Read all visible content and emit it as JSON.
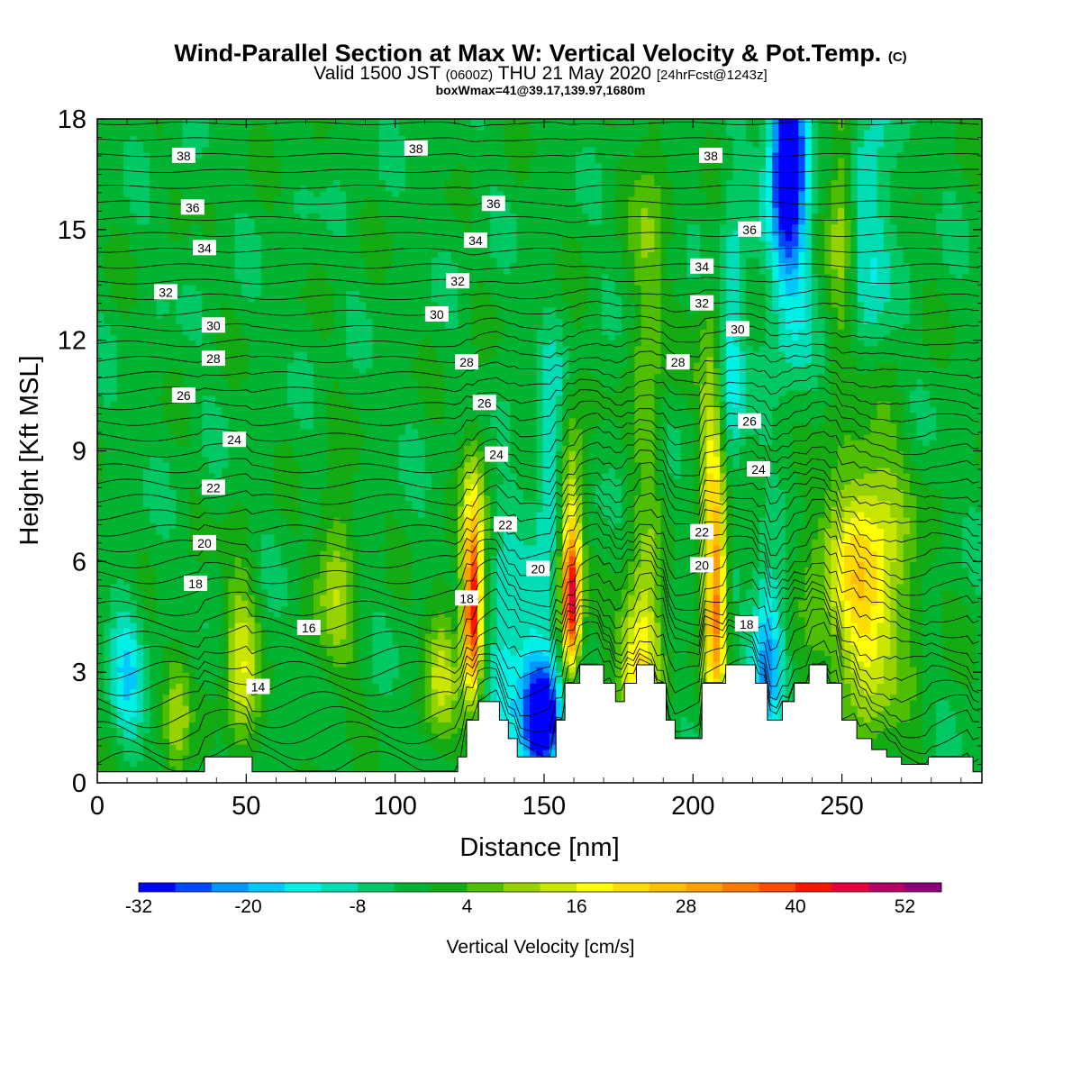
{
  "titles": {
    "main": "Wind-Parallel Section at Max W: Vertical Velocity & Pot.Temp.",
    "main_mark": "(C)",
    "valid_pre": "Valid 1500 JST",
    "valid_z": "(0600Z)",
    "valid_post": "THU 21 May 2020",
    "fcst": "[24hrFcst@1243z]",
    "box": "boxWmax=41@39.17,139.97,1680m"
  },
  "chart_data": {
    "type": "heatmap",
    "xlabel": "Distance [nm]",
    "ylabel": "Height [Kft MSL]",
    "xlim": [
      0,
      297
    ],
    "ylim": [
      0,
      18
    ],
    "xticks": [
      0,
      50,
      100,
      150,
      200,
      250
    ],
    "yticks": [
      0,
      3,
      6,
      9,
      12,
      15,
      18
    ],
    "colorbar": {
      "label": "Vertical Velocity [cm/s]",
      "ticks": [
        "-32",
        "-20",
        "-8",
        "4",
        "16",
        "28",
        "40",
        "52"
      ],
      "tick_values": [
        -32,
        -20,
        -8,
        4,
        16,
        28,
        40,
        52
      ],
      "range": [
        -32,
        56
      ],
      "step": 4,
      "colors": [
        "#0000ff",
        "#0046ff",
        "#0096ff",
        "#00c8ff",
        "#00f0e6",
        "#00dcb4",
        "#00c864",
        "#00b432",
        "#14aa14",
        "#50be00",
        "#96d200",
        "#c8e600",
        "#ffff00",
        "#ffdc00",
        "#ffbe00",
        "#ffa000",
        "#ff7800",
        "#ff4b00",
        "#ff1400",
        "#e6003c",
        "#b40064",
        "#8c0078"
      ]
    },
    "background_value": -2,
    "terrain": [
      [
        0,
        0.3
      ],
      [
        36,
        0.3
      ],
      [
        36,
        0.7
      ],
      [
        52,
        0.7
      ],
      [
        52,
        0.3
      ],
      [
        121,
        0.3
      ],
      [
        121,
        0.7
      ],
      [
        124,
        0.7
      ],
      [
        124,
        1.7
      ],
      [
        128,
        1.7
      ],
      [
        128,
        2.2
      ],
      [
        135,
        2.2
      ],
      [
        135,
        1.7
      ],
      [
        138,
        1.7
      ],
      [
        138,
        1.2
      ],
      [
        141,
        1.2
      ],
      [
        141,
        0.7
      ],
      [
        154,
        0.7
      ],
      [
        154,
        1.7
      ],
      [
        157,
        1.7
      ],
      [
        157,
        2.7
      ],
      [
        162,
        2.7
      ],
      [
        162,
        3.2
      ],
      [
        170,
        3.2
      ],
      [
        170,
        2.7
      ],
      [
        174,
        2.7
      ],
      [
        174,
        2.2
      ],
      [
        177,
        2.2
      ],
      [
        177,
        2.7
      ],
      [
        181,
        2.7
      ],
      [
        181,
        3.2
      ],
      [
        187,
        3.2
      ],
      [
        187,
        2.7
      ],
      [
        191,
        2.7
      ],
      [
        191,
        1.7
      ],
      [
        194,
        1.7
      ],
      [
        194,
        1.2
      ],
      [
        203,
        1.2
      ],
      [
        203,
        2.7
      ],
      [
        211,
        2.7
      ],
      [
        211,
        3.2
      ],
      [
        221,
        3.2
      ],
      [
        221,
        2.7
      ],
      [
        225,
        2.7
      ],
      [
        225,
        1.7
      ],
      [
        230,
        1.7
      ],
      [
        230,
        2.2
      ],
      [
        234,
        2.2
      ],
      [
        234,
        2.7
      ],
      [
        239,
        2.7
      ],
      [
        239,
        3.2
      ],
      [
        245,
        3.2
      ],
      [
        245,
        2.7
      ],
      [
        250,
        2.7
      ],
      [
        250,
        1.7
      ],
      [
        255,
        1.7
      ],
      [
        255,
        1.2
      ],
      [
        260,
        1.2
      ],
      [
        260,
        0.9
      ],
      [
        265,
        0.9
      ],
      [
        265,
        0.7
      ],
      [
        270,
        0.7
      ],
      [
        270,
        0.5
      ],
      [
        279,
        0.5
      ],
      [
        279,
        0.7
      ],
      [
        294,
        0.7
      ],
      [
        294,
        0.3
      ],
      [
        297,
        0.3
      ],
      [
        297,
        0
      ],
      [
        0,
        0
      ]
    ],
    "w_features": [
      {
        "x": 126,
        "y": 4.5,
        "sx": 2.2,
        "sy": 1.5,
        "a": 44
      },
      {
        "x": 126,
        "y": 7.2,
        "sx": 3,
        "sy": 1.8,
        "a": 16
      },
      {
        "x": 159,
        "y": 4.8,
        "sx": 2.2,
        "sy": 1.4,
        "a": 42
      },
      {
        "x": 159,
        "y": 7.5,
        "sx": 3,
        "sy": 2,
        "a": 15
      },
      {
        "x": 208,
        "y": 4.8,
        "sx": 2.5,
        "sy": 2.2,
        "a": 32
      },
      {
        "x": 206,
        "y": 9,
        "sx": 3,
        "sy": 3,
        "a": 16
      },
      {
        "x": 182,
        "y": 3.5,
        "sx": 5,
        "sy": 1.5,
        "a": 24
      },
      {
        "x": 256,
        "y": 5,
        "sx": 12,
        "sy": 2.5,
        "a": 18
      },
      {
        "x": 260,
        "y": 7.5,
        "sx": 6,
        "sy": 3,
        "a": 10
      },
      {
        "x": 232,
        "y": 17.5,
        "sx": 4,
        "sy": 2,
        "a": -30
      },
      {
        "x": 232,
        "y": 15,
        "sx": 5,
        "sy": 3,
        "a": -14
      },
      {
        "x": 260,
        "y": 15,
        "sx": 5,
        "sy": 4,
        "a": -10
      },
      {
        "x": 150,
        "y": 1.7,
        "sx": 4,
        "sy": 1,
        "a": -32
      },
      {
        "x": 145,
        "y": 2.6,
        "sx": 6,
        "sy": 1.8,
        "a": -14
      },
      {
        "x": 136,
        "y": 4,
        "sx": 3,
        "sy": 2.5,
        "a": -10
      },
      {
        "x": 152,
        "y": 8.5,
        "sx": 3,
        "sy": 2,
        "a": -14
      },
      {
        "x": 225,
        "y": 3.5,
        "sx": 4,
        "sy": 1.5,
        "a": -22
      },
      {
        "x": 213,
        "y": 12,
        "sx": 3,
        "sy": 3,
        "a": -12
      },
      {
        "x": 27,
        "y": 1.8,
        "sx": 3,
        "sy": 1.5,
        "a": 12
      },
      {
        "x": 48,
        "y": 3,
        "sx": 4,
        "sy": 2,
        "a": 16
      },
      {
        "x": 80,
        "y": 5.5,
        "sx": 5,
        "sy": 2,
        "a": 12
      },
      {
        "x": 115,
        "y": 3,
        "sx": 4,
        "sy": 1.5,
        "a": 14
      },
      {
        "x": 185,
        "y": 13,
        "sx": 4,
        "sy": 5,
        "a": 10
      },
      {
        "x": 250,
        "y": 16,
        "sx": 3,
        "sy": 3,
        "a": 12
      },
      {
        "x": 10,
        "y": 3,
        "sx": 4,
        "sy": 1.5,
        "a": -12
      }
    ],
    "contour_labels": [
      {
        "text": "38",
        "x": 29,
        "y": 17
      },
      {
        "text": "38",
        "x": 107,
        "y": 17.2
      },
      {
        "text": "38",
        "x": 206,
        "y": 17
      },
      {
        "text": "36",
        "x": 32,
        "y": 15.6
      },
      {
        "text": "36",
        "x": 133,
        "y": 15.7
      },
      {
        "text": "36",
        "x": 219,
        "y": 15
      },
      {
        "text": "34",
        "x": 36,
        "y": 14.5
      },
      {
        "text": "34",
        "x": 127,
        "y": 14.7
      },
      {
        "text": "34",
        "x": 203,
        "y": 14
      },
      {
        "text": "32",
        "x": 23,
        "y": 13.3
      },
      {
        "text": "32",
        "x": 121,
        "y": 13.6
      },
      {
        "text": "32",
        "x": 203,
        "y": 13
      },
      {
        "text": "30",
        "x": 39,
        "y": 12.4
      },
      {
        "text": "30",
        "x": 114,
        "y": 12.7
      },
      {
        "text": "30",
        "x": 215,
        "y": 12.3
      },
      {
        "text": "28",
        "x": 39,
        "y": 11.5
      },
      {
        "text": "28",
        "x": 124,
        "y": 11.4
      },
      {
        "text": "28",
        "x": 195,
        "y": 11.4
      },
      {
        "text": "26",
        "x": 29,
        "y": 10.5
      },
      {
        "text": "26",
        "x": 130,
        "y": 10.3
      },
      {
        "text": "26",
        "x": 219,
        "y": 9.8
      },
      {
        "text": "24",
        "x": 46,
        "y": 9.3
      },
      {
        "text": "24",
        "x": 134,
        "y": 8.9
      },
      {
        "text": "24",
        "x": 222,
        "y": 8.5
      },
      {
        "text": "22",
        "x": 39,
        "y": 8
      },
      {
        "text": "22",
        "x": 137,
        "y": 7
      },
      {
        "text": "22",
        "x": 203,
        "y": 6.8
      },
      {
        "text": "20",
        "x": 36,
        "y": 6.5
      },
      {
        "text": "20",
        "x": 148,
        "y": 5.8
      },
      {
        "text": "20",
        "x": 203,
        "y": 5.9
      },
      {
        "text": "18",
        "x": 33,
        "y": 5.4
      },
      {
        "text": "18",
        "x": 124,
        "y": 5
      },
      {
        "text": "18",
        "x": 218,
        "y": 4.3
      },
      {
        "text": "16",
        "x": 71,
        "y": 4.2
      },
      {
        "text": "14",
        "x": 54,
        "y": 2.6
      }
    ]
  }
}
